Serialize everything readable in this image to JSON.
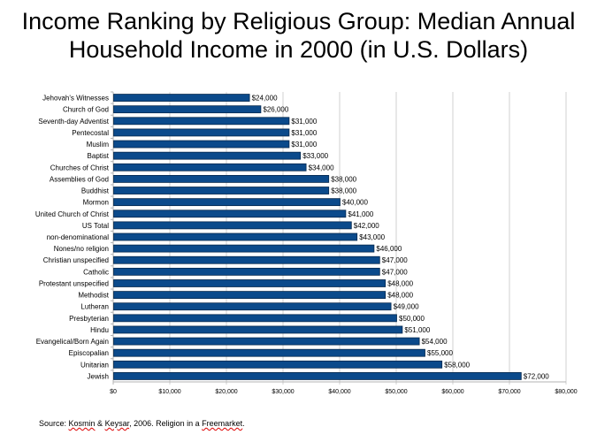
{
  "chart_data": {
    "type": "bar",
    "orientation": "horizontal",
    "title": "Income Ranking by Religious Group: Median Annual Household Income in 2000 (in U.S. Dollars)",
    "title_lines": [
      "Income Ranking by Religious Group: Median Annual",
      "Household Income in 2000 (in U.S. Dollars)"
    ],
    "xlabel": "",
    "ylabel": "",
    "xlim": [
      0,
      80000
    ],
    "xticks": [
      "$0",
      "$10,000",
      "$20,000",
      "$30,000",
      "$40,000",
      "$50,000",
      "$60,000",
      "$70,000",
      "$80,000"
    ],
    "grid": true,
    "bar_color": "#0b4a8b",
    "categories": [
      "Jehovah's Witnesses",
      "Church of God",
      "Seventh-day Adventist",
      "Pentecostal",
      "Muslim",
      "Baptist",
      "Churches of Christ",
      "Assemblies of God",
      "Buddhist",
      "Mormon",
      "United Church of Christ",
      "US Total",
      "non-denominational",
      "Nones/no religion",
      "Christian unspecified",
      "Catholic",
      "Protestant unspecified",
      "Methodist",
      "Lutheran",
      "Presbyterian",
      "Hindu",
      "Evangelical/Born Again",
      "Episcopalian",
      "Unitarian",
      "Jewish"
    ],
    "values": [
      24000,
      26000,
      31000,
      31000,
      31000,
      33000,
      34000,
      38000,
      38000,
      40000,
      41000,
      42000,
      43000,
      46000,
      47000,
      47000,
      48000,
      48000,
      49000,
      50000,
      51000,
      54000,
      55000,
      58000,
      72000
    ],
    "data_labels": [
      "$24,000",
      "$26,000",
      "$31,000",
      "$31,000",
      "$31,000",
      "$33,000",
      "$34,000",
      "$38,000",
      "$38,000",
      "$40,000",
      "$41,000",
      "$42,000",
      "$43,000",
      "$46,000",
      "$47,000",
      "$47,000",
      "$48,000",
      "$48,000",
      "$49,000",
      "$50,000",
      "$51,000",
      "$54,000",
      "$55,000",
      "$58,000",
      "$72,000"
    ]
  },
  "source": {
    "prefix": "Source: ",
    "author1": "Kosmin",
    "amp": " & ",
    "author2": "Keysar",
    "middle": ", 2006. Religion in a ",
    "book": "Freemarket",
    "end": "."
  }
}
